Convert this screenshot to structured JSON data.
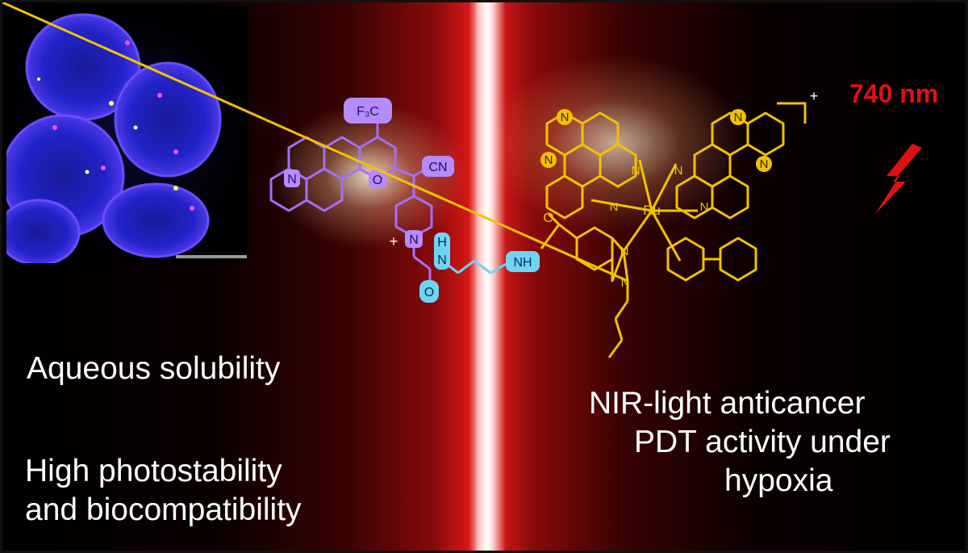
{
  "captions": {
    "aqueous": "Aqueous solubility",
    "photostability_line1": "High photostability",
    "photostability_line2": "and biocompatibility",
    "nir_line1": "NIR-light anticancer",
    "nir_line2": "PDT activity under",
    "nir_line3": "hypoxia"
  },
  "wavelength_label": "740 nm",
  "cyanine_labels": {
    "cf3": "F₃C",
    "cn": "CN",
    "n": "N",
    "o": "O",
    "charge": "+"
  },
  "linker_labels": {
    "h": "H",
    "n": "N",
    "nh": "NH",
    "o": "O"
  },
  "complex_labels": {
    "ru": "Ru",
    "n": "N",
    "o": "O",
    "charge": "+"
  },
  "colors": {
    "cyanine": "#a070ff",
    "cyanine_fill": "#b48cff",
    "linker": "#6fd3f5",
    "complex": "#f2c200",
    "laser": "#e01010",
    "text": "#ffffff"
  },
  "icons": [
    "lightning-bolt-icon",
    "fluorescence-cell-image",
    "scale-bar"
  ]
}
